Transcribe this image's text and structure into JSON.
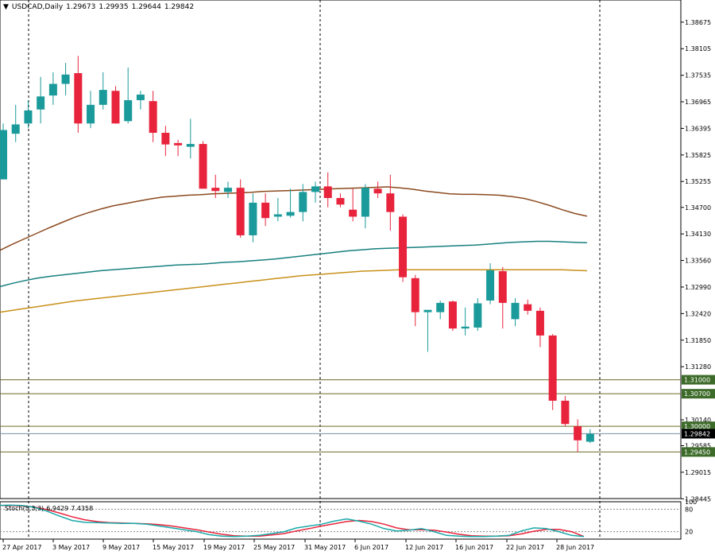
{
  "header": {
    "arrow_icon": "triangle-down-icon",
    "symbol": "USDCAD,Daily",
    "open": "1.29673",
    "high": "1.29935",
    "low": "1.29644",
    "close": "1.29842"
  },
  "colors": {
    "bull": "#1a9a9a",
    "bear": "#e8243c",
    "ma_slow": "#8b4a1f",
    "ma_mid": "#177f7f",
    "ma_fast": "#c8901a",
    "level_line": "#6b6b2a",
    "level_label_bg": "#3d6b2a",
    "price_label_bg": "#000000"
  },
  "price_axis": {
    "ticks": [
      "1.38675",
      "1.38105",
      "1.37535",
      "1.36965",
      "1.36395",
      "1.35825",
      "1.35255",
      "1.34700",
      "1.34130",
      "1.33560",
      "1.32990",
      "1.32420",
      "1.31850",
      "1.31280",
      "1.30140",
      "1.29585",
      "1.29015",
      "1.28445"
    ]
  },
  "levels": [
    {
      "label": "1.31000",
      "value": 1.31
    },
    {
      "label": "1.30700",
      "value": 1.307
    },
    {
      "label": "1.30000",
      "value": 1.3
    },
    {
      "label": "1.29450",
      "value": 1.2945
    }
  ],
  "current_price": {
    "label": "1.29842",
    "value": 1.29842
  },
  "time_axis": {
    "labels": [
      "27 Apr 2017",
      "3 May 2017",
      "9 May 2017",
      "15 May 2017",
      "19 May 2017",
      "25 May 2017",
      "31 May 2017",
      "6 Jun 2017",
      "12 Jun 2017",
      "16 Jun 2017",
      "22 Jun 2017",
      "28 Jun 2017"
    ]
  },
  "stochastic": {
    "name": "Stoch(5,3,3)",
    "main": "6.9429",
    "signal": "7.4358",
    "level_high": "80",
    "level_low": "20",
    "scale_max": "100"
  },
  "chart_data": {
    "type": "candlestick",
    "title": "USDCAD,Daily",
    "ylim": [
      1.2845,
      1.3915
    ],
    "candles": [
      {
        "o": 1.353,
        "h": 1.365,
        "l": 1.353,
        "c": 1.3636
      },
      {
        "o": 1.3628,
        "h": 1.369,
        "l": 1.361,
        "c": 1.3648
      },
      {
        "o": 1.365,
        "h": 1.37,
        "l": 1.364,
        "c": 1.3678
      },
      {
        "o": 1.368,
        "h": 1.375,
        "l": 1.365,
        "c": 1.3708
      },
      {
        "o": 1.371,
        "h": 1.376,
        "l": 1.369,
        "c": 1.3735
      },
      {
        "o": 1.3735,
        "h": 1.378,
        "l": 1.371,
        "c": 1.3755
      },
      {
        "o": 1.3758,
        "h": 1.3795,
        "l": 1.363,
        "c": 1.365
      },
      {
        "o": 1.365,
        "h": 1.372,
        "l": 1.364,
        "c": 1.369
      },
      {
        "o": 1.369,
        "h": 1.376,
        "l": 1.368,
        "c": 1.3722
      },
      {
        "o": 1.372,
        "h": 1.373,
        "l": 1.365,
        "c": 1.365
      },
      {
        "o": 1.3655,
        "h": 1.377,
        "l": 1.365,
        "c": 1.37
      },
      {
        "o": 1.37,
        "h": 1.372,
        "l": 1.368,
        "c": 1.3712
      },
      {
        "o": 1.3698,
        "h": 1.372,
        "l": 1.361,
        "c": 1.363
      },
      {
        "o": 1.363,
        "h": 1.3645,
        "l": 1.358,
        "c": 1.3605
      },
      {
        "o": 1.3608,
        "h": 1.3615,
        "l": 1.358,
        "c": 1.3603
      },
      {
        "o": 1.36,
        "h": 1.366,
        "l": 1.3575,
        "c": 1.3606
      },
      {
        "o": 1.3606,
        "h": 1.3612,
        "l": 1.351,
        "c": 1.351
      },
      {
        "o": 1.3512,
        "h": 1.354,
        "l": 1.349,
        "c": 1.3505
      },
      {
        "o": 1.3503,
        "h": 1.3525,
        "l": 1.349,
        "c": 1.3512
      },
      {
        "o": 1.3512,
        "h": 1.353,
        "l": 1.3405,
        "c": 1.341
      },
      {
        "o": 1.341,
        "h": 1.35,
        "l": 1.3395,
        "c": 1.348
      },
      {
        "o": 1.348,
        "h": 1.35,
        "l": 1.343,
        "c": 1.3447
      },
      {
        "o": 1.345,
        "h": 1.349,
        "l": 1.344,
        "c": 1.3455
      },
      {
        "o": 1.3452,
        "h": 1.351,
        "l": 1.3448,
        "c": 1.346
      },
      {
        "o": 1.346,
        "h": 1.352,
        "l": 1.344,
        "c": 1.3503
      },
      {
        "o": 1.3503,
        "h": 1.3525,
        "l": 1.348,
        "c": 1.3515
      },
      {
        "o": 1.3515,
        "h": 1.3545,
        "l": 1.347,
        "c": 1.349
      },
      {
        "o": 1.349,
        "h": 1.35,
        "l": 1.347,
        "c": 1.3476
      },
      {
        "o": 1.3465,
        "h": 1.351,
        "l": 1.344,
        "c": 1.345
      },
      {
        "o": 1.345,
        "h": 1.352,
        "l": 1.3425,
        "c": 1.3512
      },
      {
        "o": 1.351,
        "h": 1.3525,
        "l": 1.349,
        "c": 1.35
      },
      {
        "o": 1.35,
        "h": 1.354,
        "l": 1.342,
        "c": 1.346
      },
      {
        "o": 1.345,
        "h": 1.3455,
        "l": 1.331,
        "c": 1.332
      },
      {
        "o": 1.3318,
        "h": 1.3325,
        "l": 1.3215,
        "c": 1.3245
      },
      {
        "o": 1.3245,
        "h": 1.3248,
        "l": 1.316,
        "c": 1.325
      },
      {
        "o": 1.3245,
        "h": 1.327,
        "l": 1.323,
        "c": 1.3265
      },
      {
        "o": 1.3268,
        "h": 1.327,
        "l": 1.3205,
        "c": 1.321
      },
      {
        "o": 1.321,
        "h": 1.3255,
        "l": 1.3195,
        "c": 1.3214
      },
      {
        "o": 1.3212,
        "h": 1.3275,
        "l": 1.3205,
        "c": 1.3264
      },
      {
        "o": 1.327,
        "h": 1.335,
        "l": 1.3262,
        "c": 1.3335
      },
      {
        "o": 1.3333,
        "h": 1.3342,
        "l": 1.321,
        "c": 1.3265
      },
      {
        "o": 1.323,
        "h": 1.3275,
        "l": 1.3215,
        "c": 1.3265
      },
      {
        "o": 1.3262,
        "h": 1.3272,
        "l": 1.324,
        "c": 1.3248
      },
      {
        "o": 1.3248,
        "h": 1.3255,
        "l": 1.317,
        "c": 1.3195
      },
      {
        "o": 1.3195,
        "h": 1.3198,
        "l": 1.3035,
        "c": 1.3055
      },
      {
        "o": 1.3055,
        "h": 1.3065,
        "l": 1.3,
        "c": 1.3005
      },
      {
        "o": 1.3,
        "h": 1.3015,
        "l": 1.2945,
        "c": 1.297
      },
      {
        "o": 1.2967,
        "h": 1.2994,
        "l": 1.2964,
        "c": 1.2984
      }
    ],
    "ma_slow": [
      1.3378,
      1.3391,
      1.3403,
      1.3415,
      1.3427,
      1.3438,
      1.3449,
      1.3458,
      1.3466,
      1.3473,
      1.3478,
      1.3483,
      1.3488,
      1.3492,
      1.3494,
      1.3496,
      1.3497,
      1.3499,
      1.35,
      1.3501,
      1.3502,
      1.3504,
      1.3505,
      1.3506,
      1.3507,
      1.3508,
      1.3509,
      1.351,
      1.3511,
      1.3512,
      1.3513,
      1.3514,
      1.3512,
      1.3509,
      1.3505,
      1.3502,
      1.3499,
      1.3498,
      1.3498,
      1.3497,
      1.3496,
      1.3493,
      1.3489,
      1.3482,
      1.3474,
      1.3465,
      1.3457,
      1.3451
    ],
    "ma_mid": [
      1.33,
      1.3307,
      1.3313,
      1.3318,
      1.3322,
      1.3325,
      1.3328,
      1.3331,
      1.3334,
      1.3336,
      1.3338,
      1.334,
      1.3342,
      1.3344,
      1.3346,
      1.3347,
      1.3348,
      1.335,
      1.3352,
      1.3353,
      1.3355,
      1.3357,
      1.3359,
      1.3362,
      1.3365,
      1.3368,
      1.3371,
      1.3374,
      1.3377,
      1.3379,
      1.3381,
      1.3382,
      1.3383,
      1.3384,
      1.3385,
      1.3386,
      1.3387,
      1.3388,
      1.3389,
      1.3391,
      1.3393,
      1.3395,
      1.3396,
      1.3397,
      1.3397,
      1.3396,
      1.3395,
      1.3394
    ],
    "ma_fast": [
      1.3245,
      1.3249,
      1.3253,
      1.3257,
      1.3261,
      1.3265,
      1.3269,
      1.3272,
      1.3275,
      1.3278,
      1.3281,
      1.3284,
      1.3287,
      1.329,
      1.3293,
      1.3296,
      1.3299,
      1.3302,
      1.3305,
      1.3308,
      1.3311,
      1.3314,
      1.3317,
      1.332,
      1.3323,
      1.3325,
      1.3327,
      1.3329,
      1.3331,
      1.3333,
      1.3334,
      1.3335,
      1.3336,
      1.3336,
      1.3336,
      1.3336,
      1.3336,
      1.3336,
      1.3336,
      1.3336,
      1.3336,
      1.3336,
      1.3336,
      1.3336,
      1.3336,
      1.3336,
      1.3335,
      1.3334
    ],
    "stoch_main": [
      90,
      91,
      90,
      85,
      75,
      62,
      50,
      45,
      44,
      43,
      42,
      42,
      40,
      35,
      30,
      25,
      20,
      12,
      8,
      7,
      8,
      10,
      15,
      20,
      30,
      35,
      40,
      48,
      54,
      48,
      40,
      28,
      22,
      24,
      28,
      20,
      10,
      8,
      7,
      7,
      8,
      10,
      22,
      30,
      28,
      20,
      10,
      7
    ],
    "stoch_signal": [
      90,
      90,
      89,
      86,
      79,
      70,
      60,
      52,
      47,
      44,
      43,
      42,
      41,
      39,
      35,
      30,
      25,
      19,
      13,
      9,
      8,
      8,
      11,
      15,
      22,
      28,
      35,
      41,
      47,
      50,
      47,
      40,
      30,
      25,
      25,
      24,
      19,
      13,
      9,
      8,
      8,
      9,
      14,
      21,
      26,
      26,
      20,
      7
    ]
  }
}
